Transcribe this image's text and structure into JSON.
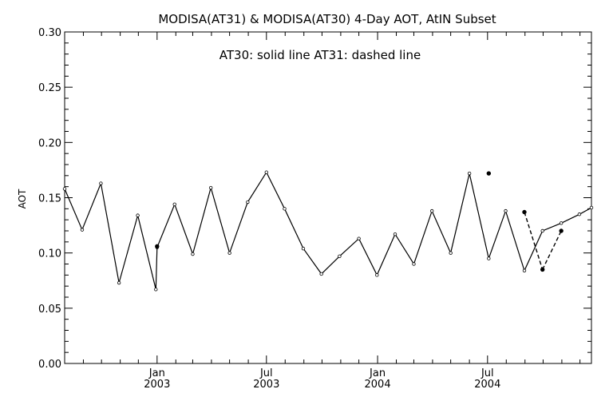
{
  "chart_data": {
    "type": "line",
    "title": "MODISA(AT31) & MODISA(AT30) 4-Day AOT, AtIN Subset",
    "legend_text": "AT30: solid line    AT31: dashed line",
    "xlabel": "",
    "ylabel": "AOT",
    "ylim": [
      0.0,
      0.3
    ],
    "xlim": [
      "2002-08-01",
      "2004-12-20"
    ],
    "y_ticks": [
      "0.00",
      "0.05",
      "0.10",
      "0.15",
      "0.20",
      "0.25",
      "0.30"
    ],
    "x_ticks": [
      {
        "date": "2003-01-01",
        "month": "Jan",
        "year": "2003"
      },
      {
        "date": "2003-07-01",
        "month": "Jul",
        "year": "2003"
      },
      {
        "date": "2004-01-01",
        "month": "Jan",
        "year": "2004"
      },
      {
        "date": "2004-07-01",
        "month": "Jul",
        "year": "2004"
      }
    ],
    "grid": false,
    "series": [
      {
        "name": "AT30",
        "style": "solid",
        "x": [
          "2002-08-01",
          "2002-08-30",
          "2002-09-30",
          "2002-10-30",
          "2002-11-30",
          "2002-12-30",
          "2003-01-01",
          "2003-01-30",
          "2003-03-01",
          "2003-03-31",
          "2003-05-01",
          "2003-05-31",
          "2003-07-01",
          "2003-07-31",
          "2003-08-31",
          "2003-09-30",
          "2003-10-30",
          "2003-12-01",
          "2003-12-31",
          "2004-01-30",
          "2004-03-01",
          "2004-03-31",
          "2004-05-01",
          "2004-06-01",
          "2004-07-03",
          "2004-07-31",
          "2004-08-31",
          "2004-09-30",
          "2004-10-31",
          "2004-11-30",
          "2004-12-20"
        ],
        "y": [
          0.158,
          0.121,
          0.163,
          0.073,
          0.134,
          0.067,
          0.105,
          0.144,
          0.099,
          0.159,
          0.1,
          0.146,
          0.173,
          0.14,
          0.104,
          0.081,
          0.097,
          0.113,
          0.08,
          0.117,
          0.09,
          0.138,
          0.1,
          0.172,
          0.095,
          0.138,
          0.084,
          0.12,
          0.127,
          0.135,
          0.141
        ]
      },
      {
        "name": "AT31",
        "style": "dashed",
        "x": [
          "2003-01-01",
          "2004-07-03",
          "2004-08-31",
          "2004-09-30",
          "2004-10-31"
        ],
        "y": [
          0.106,
          0.172,
          0.137,
          0.085,
          0.12
        ]
      }
    ]
  }
}
